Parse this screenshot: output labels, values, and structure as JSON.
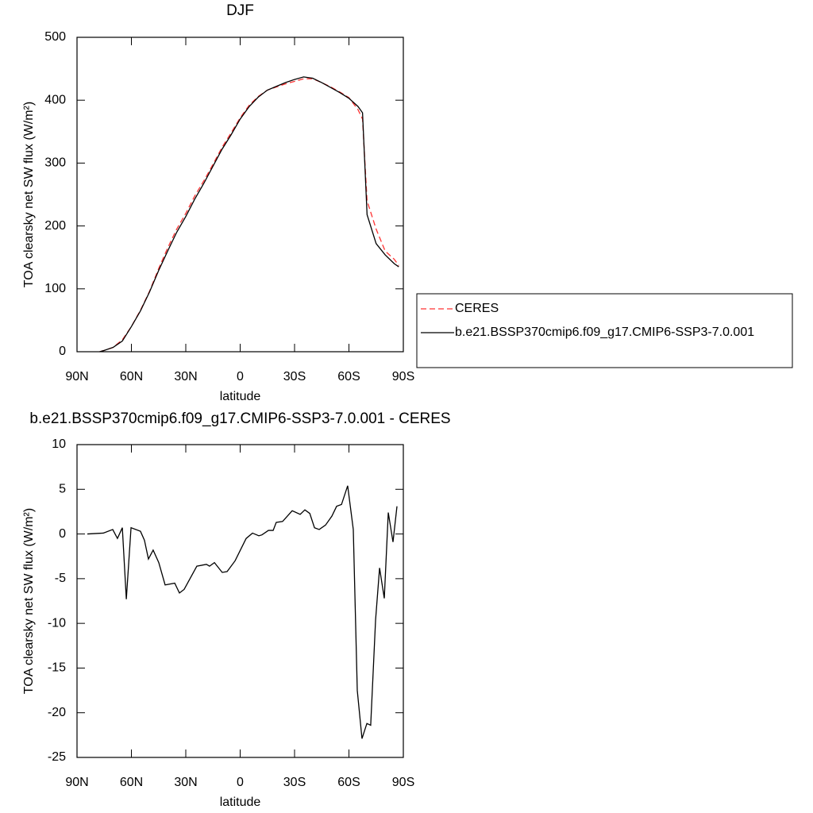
{
  "chart_data": [
    {
      "type": "line",
      "title": "DJF",
      "x_label": "latitude",
      "y_label": "TOA clearsky net SW flux (W/m²)",
      "x": [
        77.5,
        75,
        70,
        65,
        60,
        55,
        50,
        45,
        40,
        35,
        30,
        25,
        20,
        15,
        10,
        5,
        0,
        -5,
        -10,
        -15,
        -20,
        -25,
        -30,
        -35,
        -40,
        -45,
        -50,
        -55,
        -60,
        -65,
        -67.5,
        -70,
        -75,
        -80,
        -85,
        -87.5
      ],
      "xlim": [
        90,
        -90
      ],
      "xticks": [
        {
          "value": 90,
          "label": "90N"
        },
        {
          "value": 60,
          "label": "60N"
        },
        {
          "value": 30,
          "label": "30N"
        },
        0,
        {
          "value": -30,
          "label": "30S"
        },
        {
          "value": -60,
          "label": "60S"
        },
        {
          "value": -90,
          "label": "90S"
        }
      ],
      "ylim": [
        0,
        500
      ],
      "yticks": [
        0,
        100,
        200,
        300,
        400,
        500
      ],
      "legend": "right",
      "series": [
        {
          "name": "CERES",
          "color": "#ff3333",
          "dash": true,
          "values": [
            0,
            2,
            7,
            19,
            40,
            66,
            96,
            132,
            165,
            195,
            220,
            248,
            272,
            298,
            325,
            348,
            372,
            392,
            406,
            416,
            421,
            426,
            430,
            434,
            434,
            428,
            421,
            413,
            404,
            385,
            370,
            240,
            195,
            160,
            147,
            137
          ]
        },
        {
          "name": "b.e21.BSSP370cmip6.f09_g17.CMIP6-SSP3-7.0.001",
          "color": "#000000",
          "dash": false,
          "values": [
            0,
            2,
            7,
            17,
            40,
            65,
            95,
            129,
            160,
            190,
            215,
            243,
            268,
            295,
            322,
            345,
            370,
            390,
            405,
            416,
            422,
            428,
            433,
            437,
            435,
            428,
            420,
            412,
            403,
            390,
            380,
            218,
            172,
            154,
            140,
            135
          ]
        }
      ]
    },
    {
      "type": "line",
      "title": "b.e21.BSSP370cmip6.f09_g17.CMIP6-SSP3-7.0.001 - CERES",
      "x_label": "latitude",
      "y_label": "TOA clearsky net SW flux (W/m²)",
      "x": [
        84.3,
        75.5,
        70.3,
        67.7,
        65,
        62.8,
        60.2,
        55,
        52.8,
        50.6,
        48,
        44.9,
        41.4,
        36.1,
        33.5,
        30.9,
        27.4,
        23.9,
        18.6,
        16.9,
        14.2,
        9.9,
        7.2,
        2.8,
        -3.3,
        -6.8,
        -10.3,
        -12,
        -15.6,
        -18.2,
        -19.9,
        -23.4,
        -28.7,
        -33.1,
        -35.7,
        -38.4,
        -41,
        -43.6,
        -47.1,
        -50.6,
        -53.2,
        -55.9,
        -59.3,
        -62.4,
        -64.6,
        -67.2,
        -69.9,
        -72,
        -74.7,
        -76.9,
        -79.5,
        -81.7,
        -84.3,
        -86.5
      ],
      "xlim": [
        90,
        -90
      ],
      "xticks": [
        {
          "value": 90,
          "label": "90N"
        },
        {
          "value": 60,
          "label": "60N"
        },
        {
          "value": 30,
          "label": "30N"
        },
        0,
        {
          "value": -30,
          "label": "30S"
        },
        {
          "value": -60,
          "label": "60S"
        },
        {
          "value": -90,
          "label": "90S"
        }
      ],
      "ylim": [
        -25,
        10
      ],
      "yticks": [
        10,
        5,
        0,
        -5,
        -10,
        -15,
        -20,
        -25
      ],
      "series": [
        {
          "name": null,
          "color": "#000000",
          "dash": false,
          "values": [
            0,
            0.1,
            0.5,
            -0.5,
            0.7,
            -7.3,
            0.7,
            0.3,
            -0.7,
            -2.8,
            -1.8,
            -3.2,
            -5.7,
            -5.5,
            -6.6,
            -6.2,
            -4.9,
            -3.6,
            -3.4,
            -3.6,
            -3.2,
            -4.3,
            -4.2,
            -3,
            -0.5,
            0.1,
            -0.2,
            -0.1,
            0.4,
            0.4,
            1.3,
            1.4,
            2.6,
            2.2,
            2.7,
            2.3,
            0.7,
            0.5,
            1,
            2,
            3.1,
            3.3,
            5.4,
            0.5,
            -17.5,
            -22.9,
            -21.2,
            -21.4,
            -9.6,
            -3.8,
            -7.2,
            2.4,
            -0.9,
            3.1
          ]
        }
      ]
    }
  ]
}
